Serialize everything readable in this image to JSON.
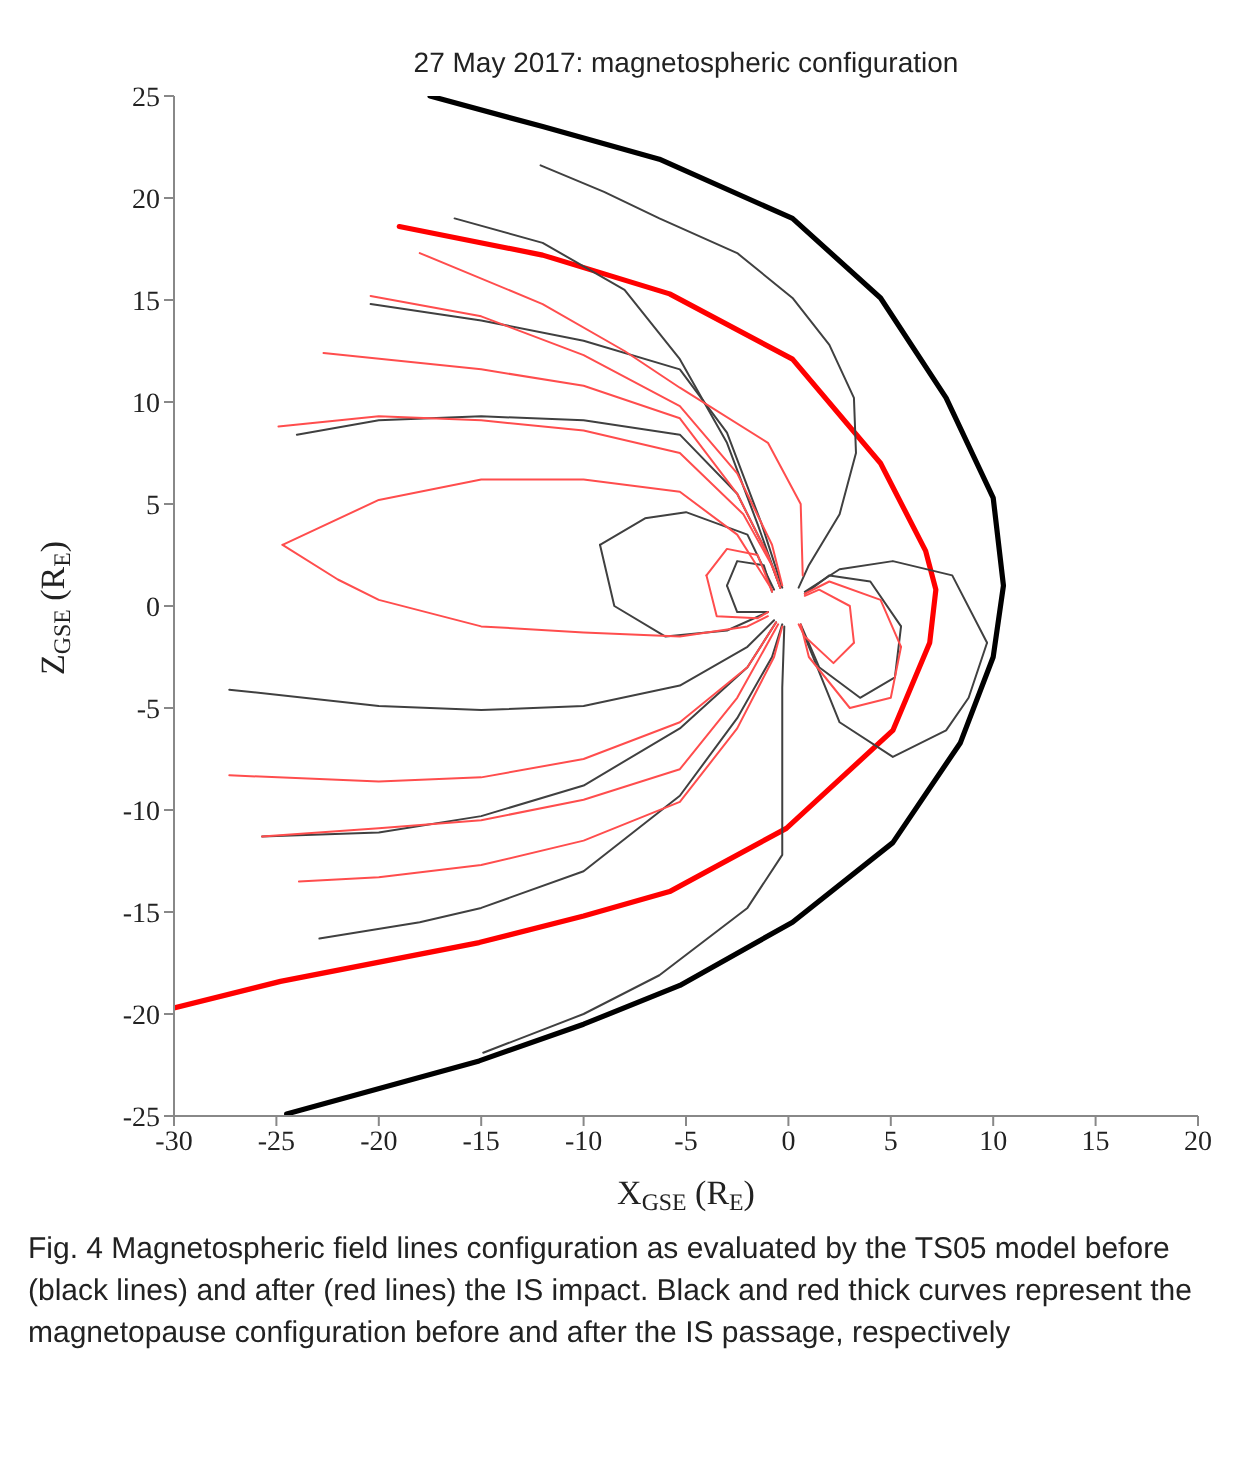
{
  "chart_data": {
    "type": "line",
    "title": "27 May 2017: magnetospheric configuration",
    "xlabel": "X$_{GSE}$ (R$_{E}$)",
    "ylabel": "Z$_{GSE}$ (R$_{E}$)",
    "xlim": [
      -30,
      20
    ],
    "ylim": [
      -25,
      25
    ],
    "xticks": [
      -30,
      -25,
      -20,
      -15,
      -10,
      -5,
      0,
      5,
      10,
      15,
      20
    ],
    "yticks": [
      -25,
      -20,
      -15,
      -10,
      -5,
      0,
      5,
      10,
      15,
      20,
      25
    ],
    "grid": false,
    "legend": false,
    "annotations": [
      "Fig. 4  Magnetospheric field lines configuration as evaluated by the TS05 model before (black lines) and after (red lines) the IS impact. Black and red thick curves represent the magnetopause configuration before and after the IS passage, respectively"
    ],
    "series": [
      {
        "color": "#000000",
        "x": [
          -17.5,
          -12,
          -6.3,
          0.2,
          4.5,
          7.7,
          10,
          10.5,
          10,
          8.4,
          5.1,
          0.2,
          -5.3,
          -10,
          -15.1,
          -24.5
        ],
        "values": [
          25,
          23.5,
          21.9,
          19,
          15.1,
          10.2,
          5.3,
          1,
          -2.5,
          -6.7,
          -11.6,
          -15.5,
          -18.6,
          -20.5,
          -22.3,
          -24.9
        ]
      },
      {
        "color": "#ff0000",
        "x": [
          -19,
          -12,
          -5.8,
          0.2,
          4.5,
          6.7,
          7.2,
          6.9,
          5.1,
          -0.1,
          -5.8,
          -10,
          -15.1,
          -24.8,
          -30
        ],
        "values": [
          18.6,
          17.2,
          15.3,
          12.1,
          7,
          2.7,
          0.8,
          -1.8,
          -6.1,
          -10.9,
          -14,
          -15.2,
          -16.5,
          -18.4,
          -19.7
        ]
      },
      {
        "color": "#404040",
        "x": [
          -12.1,
          -9,
          -6.3,
          -2.5,
          0.2,
          2,
          3.2,
          3.3,
          2.5,
          1,
          0.5
        ],
        "values": [
          21.6,
          20.3,
          19,
          17.3,
          15.1,
          12.8,
          10.2,
          7.5,
          4.5,
          2,
          0.9
        ]
      },
      {
        "color": "#404040",
        "x": [
          -16.3,
          -12,
          -8,
          -5.3,
          -3,
          -1.5,
          -0.4
        ],
        "values": [
          19,
          17.8,
          15.5,
          12.1,
          8,
          4,
          0.9
        ]
      },
      {
        "color": "#404040",
        "x": [
          -20.4,
          -15,
          -10,
          -5.3,
          -3,
          -1.3,
          -0.3
        ],
        "values": [
          14.8,
          14,
          13,
          11.6,
          8.5,
          4,
          0.9
        ]
      },
      {
        "color": "#404040",
        "x": [
          -24,
          -20,
          -15,
          -10,
          -5.3,
          -2.5,
          -1,
          -0.4
        ],
        "values": [
          8.4,
          9.1,
          9.3,
          9.1,
          8.4,
          5.5,
          2.5,
          0.9
        ]
      },
      {
        "color": "#404040",
        "x": [
          -0.7,
          -2,
          -5,
          -7,
          -9.2
        ],
        "values": [
          0.8,
          3.5,
          4.6,
          4.3,
          3
        ]
      },
      {
        "color": "#404040",
        "x": [
          -9.2,
          -8.5,
          -6,
          -3,
          -1
        ],
        "values": [
          3,
          0,
          -1.5,
          -1.2,
          -0.3
        ]
      },
      {
        "color": "#404040",
        "x": [
          -0.8,
          -1.2,
          -2.5,
          -3
        ],
        "values": [
          0.7,
          2,
          2.2,
          1
        ]
      },
      {
        "color": "#404040",
        "x": [
          -3,
          -2.5,
          -1
        ],
        "values": [
          1,
          -0.3,
          -0.3
        ]
      },
      {
        "color": "#404040",
        "x": [
          0.8,
          2.5,
          5.1,
          8,
          9.7
        ],
        "values": [
          0.7,
          1.8,
          2.2,
          1.5,
          -1.8
        ]
      },
      {
        "color": "#404040",
        "x": [
          9.7,
          8.8,
          7.7,
          5.1,
          2.5,
          0.6
        ],
        "values": [
          -1.8,
          -4.5,
          -6.1,
          -7.4,
          -5.7,
          -1
        ]
      },
      {
        "color": "#404040",
        "x": [
          0.8,
          2,
          4,
          5.5
        ],
        "values": [
          0.6,
          1.5,
          1.2,
          -1
        ]
      },
      {
        "color": "#404040",
        "x": [
          5.5,
          5.2,
          3.5,
          1.5,
          0.6
        ],
        "values": [
          -1,
          -3.5,
          -4.5,
          -3,
          -0.9
        ]
      },
      {
        "color": "#404040",
        "x": [
          -27.3,
          -20,
          -15,
          -10,
          -5.3,
          -2,
          -0.7
        ],
        "values": [
          -4.1,
          -4.9,
          -5.1,
          -4.9,
          -3.9,
          -2,
          -0.7
        ]
      },
      {
        "color": "#404040",
        "x": [
          -25.7,
          -20,
          -15,
          -10,
          -5.3,
          -2,
          -0.6
        ],
        "values": [
          -11.3,
          -11.1,
          -10.3,
          -8.8,
          -6,
          -3,
          -0.8
        ]
      },
      {
        "color": "#404040",
        "x": [
          -22.9,
          -18,
          -15,
          -10,
          -5.3,
          -2.5,
          -0.8,
          -0.3
        ],
        "values": [
          -16.3,
          -15.5,
          -14.8,
          -13,
          -9.3,
          -5.5,
          -2.5,
          -0.9
        ]
      },
      {
        "color": "#404040",
        "x": [
          -14.9,
          -10,
          -6.3,
          -2,
          -0.3,
          -0.3,
          -0.3,
          -0.2
        ],
        "values": [
          -21.9,
          -20,
          -18.1,
          -14.8,
          -12.2,
          -8.3,
          -4,
          -1
        ]
      },
      {
        "color": "#ff4d4d",
        "x": [
          -18,
          -12,
          -8,
          -5.3,
          -1,
          0.6,
          0.7
        ],
        "values": [
          17.3,
          14.8,
          12.5,
          10.7,
          8,
          5,
          1.5
        ]
      },
      {
        "color": "#ff4d4d",
        "x": [
          -20.4,
          -15,
          -10,
          -5.3,
          -2.5,
          -0.8,
          -0.3
        ],
        "values": [
          15.2,
          14.2,
          12.3,
          9.8,
          6.5,
          3,
          1
        ]
      },
      {
        "color": "#ff4d4d",
        "x": [
          -22.7,
          -15,
          -10,
          -5.3,
          -2.5,
          -1,
          -0.4
        ],
        "values": [
          12.4,
          11.6,
          10.8,
          9.2,
          5.5,
          2.5,
          0.9
        ]
      },
      {
        "color": "#ff4d4d",
        "x": [
          -24.9,
          -20,
          -15,
          -10,
          -5.3,
          -2.2,
          -0.7,
          -0.4
        ],
        "values": [
          8.8,
          9.3,
          9.1,
          8.6,
          7.5,
          4.5,
          1.8,
          0.9
        ]
      },
      {
        "color": "#ff4d4d",
        "x": [
          -0.8,
          -2.5,
          -5.3,
          -10,
          -15,
          -20,
          -24.7
        ],
        "values": [
          0.8,
          3.5,
          5.6,
          6.2,
          6.2,
          5.2,
          3
        ]
      },
      {
        "color": "#ff4d4d",
        "x": [
          -24.7,
          -22,
          -20,
          -15,
          -10,
          -5.3,
          -2,
          -1
        ],
        "values": [
          3,
          1.3,
          0.3,
          -1,
          -1.3,
          -1.5,
          -1,
          -0.5
        ]
      },
      {
        "color": "#ff4d4d",
        "x": [
          -0.8,
          -1.5,
          -3,
          -4
        ],
        "values": [
          0.7,
          2.5,
          2.8,
          1.5
        ]
      },
      {
        "color": "#ff4d4d",
        "x": [
          -4,
          -3.5,
          -1.5,
          -1
        ],
        "values": [
          1.5,
          -0.5,
          -0.6,
          -0.3
        ]
      },
      {
        "color": "#ff4d4d",
        "x": [
          0.8,
          2,
          4.5,
          5.5
        ],
        "values": [
          0.6,
          1.2,
          0.3,
          -2
        ]
      },
      {
        "color": "#ff4d4d",
        "x": [
          5.5,
          5,
          3,
          1,
          0.6
        ],
        "values": [
          -2,
          -4.5,
          -5,
          -2.5,
          -0.9
        ]
      },
      {
        "color": "#ff4d4d",
        "x": [
          0.8,
          1.5,
          3,
          3.2
        ],
        "values": [
          0.5,
          0.8,
          0,
          -1.8
        ]
      },
      {
        "color": "#ff4d4d",
        "x": [
          3.2,
          2.2,
          0.8,
          0.5
        ],
        "values": [
          -1.8,
          -2.8,
          -1.5,
          -0.9
        ]
      },
      {
        "color": "#ff4d4d",
        "x": [
          -27.3,
          -20,
          -15,
          -10,
          -5.3,
          -2,
          -0.6
        ],
        "values": [
          -8.3,
          -8.6,
          -8.4,
          -7.5,
          -5.7,
          -3,
          -0.8
        ]
      },
      {
        "color": "#ff4d4d",
        "x": [
          -25.7,
          -20,
          -15,
          -10,
          -5.3,
          -2.5,
          -0.5
        ],
        "values": [
          -11.3,
          -10.9,
          -10.5,
          -9.5,
          -8,
          -4.5,
          -0.9
        ]
      },
      {
        "color": "#ff4d4d",
        "x": [
          -23.9,
          -20,
          -15,
          -10,
          -5.3,
          -2.5,
          -0.7,
          -0.3
        ],
        "values": [
          -13.5,
          -13.3,
          -12.7,
          -11.5,
          -9.6,
          -6,
          -2.5,
          -1
        ]
      }
    ]
  }
}
